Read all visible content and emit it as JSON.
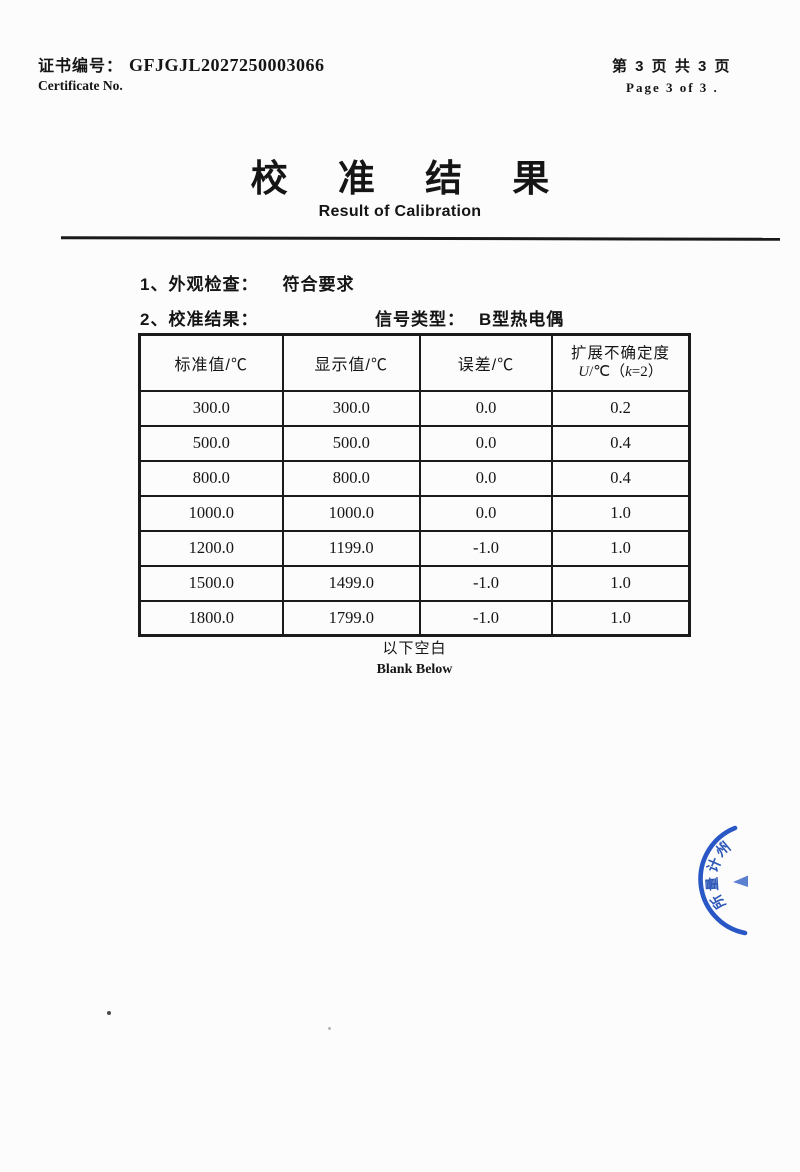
{
  "header": {
    "certificate_label_cn": "证书编号：",
    "certificate_number": "GFJGJL2027250003066",
    "certificate_label_en": "Certificate No.",
    "page_info_cn": "第 3 页  共 3 页",
    "page_info_en": "Page 3 of 3 ."
  },
  "title": {
    "cn": "校 准 结 果",
    "en": "Result of Calibration"
  },
  "sections": {
    "item1_label": "1、外观检查：",
    "item1_value": "符合要求",
    "item2_label": "2、校准结果：",
    "signal_type_label": "信号类型：",
    "signal_type_value": "B型热电偶"
  },
  "table": {
    "headers": [
      "标准值/℃",
      "显示值/℃",
      "误差/℃"
    ],
    "uncert_header_line1": "扩展不确定度",
    "uncert_parts": {
      "u": "U",
      "mid": "/℃（",
      "k": "k",
      "tail": "=2）"
    },
    "rows": [
      [
        "300.0",
        "300.0",
        "0.0",
        "0.2"
      ],
      [
        "500.0",
        "500.0",
        "0.0",
        "0.4"
      ],
      [
        "800.0",
        "800.0",
        "0.0",
        "0.4"
      ],
      [
        "1000.0",
        "1000.0",
        "0.0",
        "1.0"
      ],
      [
        "1200.0",
        "1199.0",
        "-1.0",
        "1.0"
      ],
      [
        "1500.0",
        "1499.0",
        "-1.0",
        "1.0"
      ],
      [
        "1800.0",
        "1799.0",
        "-1.0",
        "1.0"
      ]
    ]
  },
  "footer": {
    "blank_cn": "以下空白",
    "blank_en": "Blank Below"
  },
  "stamp": {
    "visible_chars": [
      "州",
      "计",
      "量",
      "所"
    ],
    "color": "#1e4ec2"
  }
}
